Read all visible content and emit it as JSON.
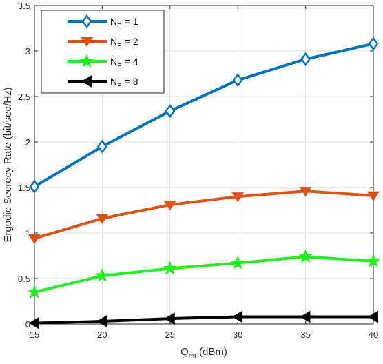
{
  "chart_data": {
    "type": "line",
    "xlabel": "Q",
    "xlabel_sub": "tot",
    "xlabel_unit": " (dBm)",
    "ylabel": "Ergodic Secrecy Rate (bit/sec/Hz)",
    "x": [
      15,
      20,
      25,
      30,
      35,
      40
    ],
    "xlim": [
      15,
      40
    ],
    "ylim": [
      0,
      3.5
    ],
    "xticks": [
      15,
      20,
      25,
      30,
      35,
      40
    ],
    "yticks": [
      0,
      0.5,
      1,
      1.5,
      2,
      2.5,
      3,
      3.5
    ],
    "xtick_labels": [
      "15",
      "20",
      "25",
      "30",
      "35",
      "40"
    ],
    "ytick_labels": [
      "0",
      "0.5",
      "1",
      "1.5",
      "2",
      "2.5",
      "3",
      "3.5"
    ],
    "grid": true,
    "legend_position": "top-left",
    "series": [
      {
        "name": "N",
        "name_sub": "E",
        "name_suffix": " = 1",
        "color": "#0072BD",
        "marker": "diamond",
        "values": [
          1.51,
          1.95,
          2.34,
          2.68,
          2.91,
          3.08
        ]
      },
      {
        "name": "N",
        "name_sub": "E",
        "name_suffix": " = 2",
        "color": "#D95319",
        "marker": "triangle-down",
        "values": [
          0.94,
          1.16,
          1.31,
          1.4,
          1.46,
          1.41
        ]
      },
      {
        "name": "N",
        "name_sub": "E",
        "name_suffix": " = 4",
        "color": "#22EE22",
        "marker": "star",
        "values": [
          0.35,
          0.53,
          0.61,
          0.67,
          0.74,
          0.69
        ]
      },
      {
        "name": "N",
        "name_sub": "E",
        "name_suffix": " = 8",
        "color": "#000000",
        "marker": "triangle-left",
        "values": [
          0.01,
          0.03,
          0.06,
          0.08,
          0.08,
          0.08
        ]
      }
    ]
  }
}
